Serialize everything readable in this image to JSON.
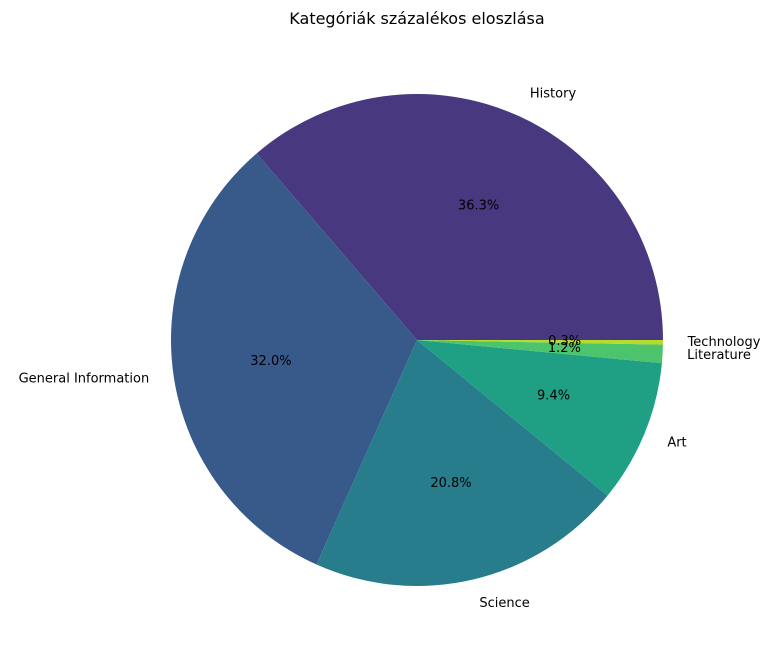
{
  "chart_data": {
    "type": "pie",
    "title": "Kategóriák százalékos eloszlása",
    "start_angle_deg": 0,
    "direction": "counterclockwise",
    "slices": [
      {
        "label": "History",
        "value": 36.3,
        "pct_label": "36.3%",
        "color": "#483880"
      },
      {
        "label": "General Information",
        "value": 32.0,
        "pct_label": "32.0%",
        "color": "#385a8b"
      },
      {
        "label": "Science",
        "value": 20.8,
        "pct_label": "20.8%",
        "color": "#277d8c"
      },
      {
        "label": "Art",
        "value": 9.4,
        "pct_label": "9.4%",
        "color": "#1fa085"
      },
      {
        "label": "Literature",
        "value": 1.2,
        "pct_label": "1.2%",
        "color": "#4dc36c"
      },
      {
        "label": "Technology",
        "value": 0.3,
        "pct_label": "0.3%",
        "color": "#b5db2b"
      }
    ]
  }
}
